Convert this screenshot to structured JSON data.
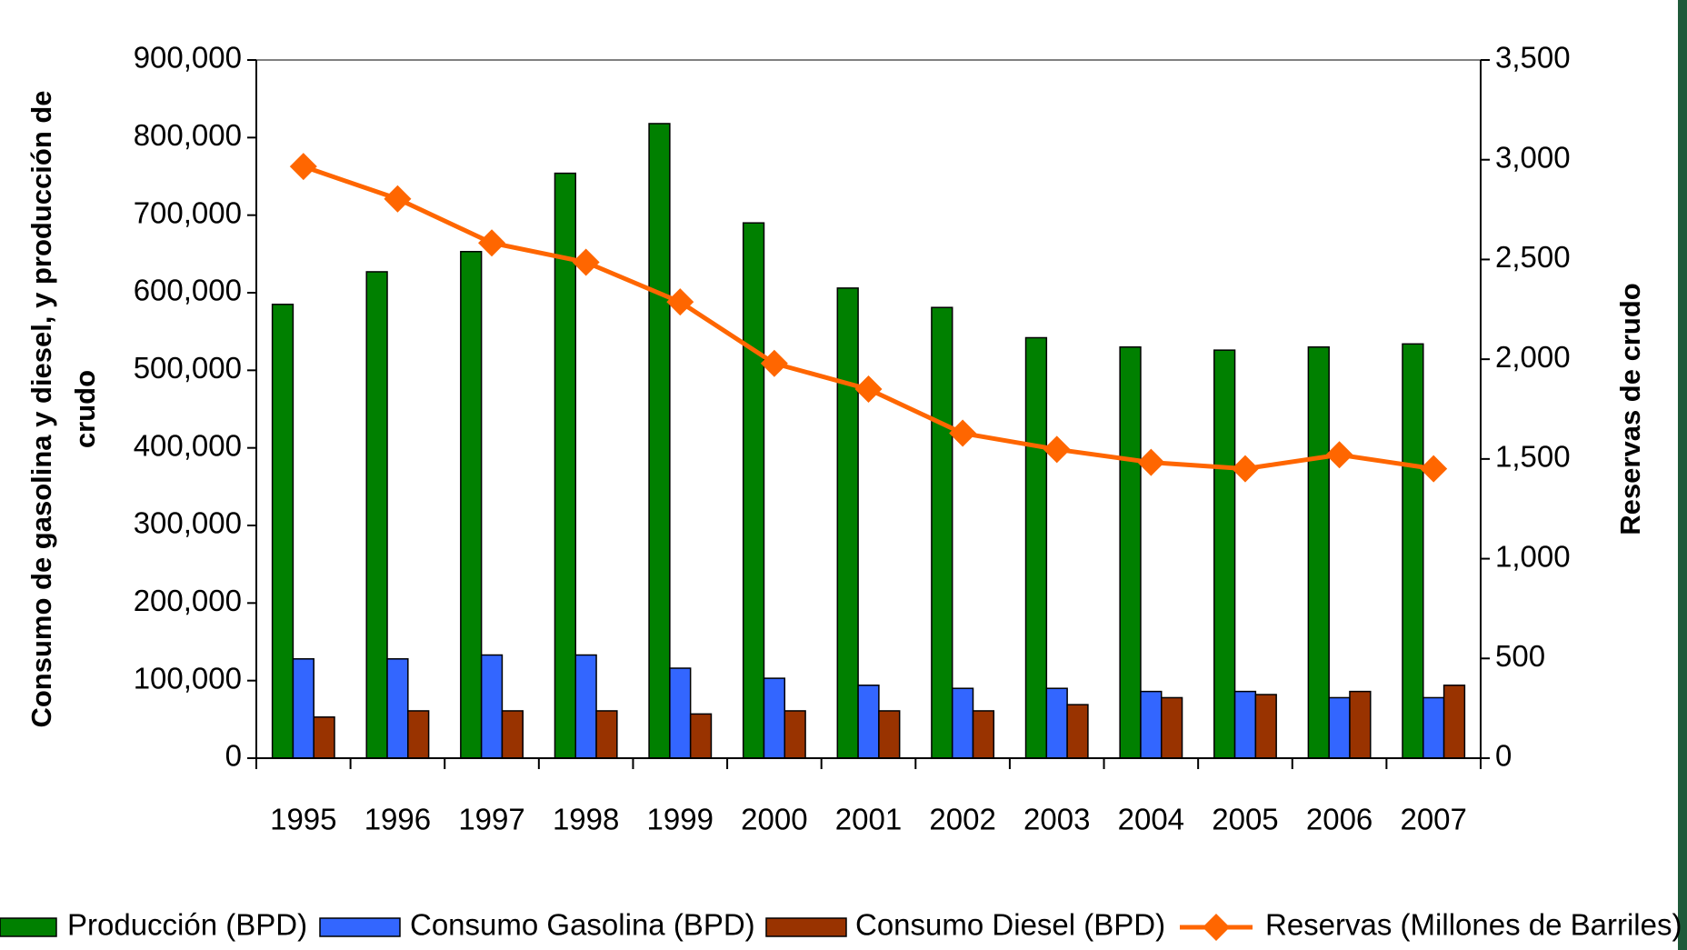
{
  "chart_data": {
    "type": "bar",
    "y_label": [
      "Consumo de gasolina y diesel, y producción de",
      "crudo"
    ],
    "y2_label": "Reservas de crudo",
    "categories": [
      "1995",
      "1996",
      "1997",
      "1998",
      "1999",
      "2000",
      "2001",
      "2002",
      "2003",
      "2004",
      "2005",
      "2006",
      "2007"
    ],
    "series": [
      {
        "name": "Producción (BPD)",
        "color": "#008000",
        "values": [
          585000,
          627000,
          653000,
          754000,
          818000,
          690000,
          606000,
          581000,
          542000,
          530000,
          526000,
          530000,
          534000
        ]
      },
      {
        "name": "Consumo Gasolina (BPD)",
        "color": "#3366ff",
        "values": [
          128000,
          128000,
          133000,
          133000,
          116000,
          103000,
          94000,
          90000,
          90000,
          86000,
          86000,
          78000,
          78000
        ]
      },
      {
        "name": "Consumo Diesel (BPD)",
        "color": "#993300",
        "values": [
          53000,
          61000,
          61000,
          61000,
          57000,
          61000,
          61000,
          61000,
          69000,
          78000,
          82000,
          86000,
          94000
        ]
      },
      {
        "name": "Reservas (Millones de Barriles)",
        "color": "#ff6600",
        "type": "line",
        "axis": "y2",
        "values": [
          2966,
          2804,
          2583,
          2486,
          2287,
          1979,
          1850,
          1629,
          1548,
          1483,
          1451,
          1521,
          1451
        ]
      }
    ],
    "ylim": [
      0,
      900000
    ],
    "yticks": [
      0,
      {
        "value": 100000,
        "label": "100,000"
      },
      {
        "value": 200000,
        "label": "200,000"
      },
      {
        "value": 300000,
        "label": "300,000"
      },
      {
        "value": 400000,
        "label": "400,000"
      },
      {
        "value": 500000,
        "label": "500,000"
      },
      {
        "value": 600000,
        "label": "600,000"
      },
      {
        "value": 700000,
        "label": "700,000"
      },
      {
        "value": 800000,
        "label": "800,000"
      },
      {
        "value": 900000,
        "label": "900,000"
      }
    ],
    "y2lim": [
      0,
      3500
    ],
    "y2ticks": [
      0,
      500,
      {
        "value": 1000,
        "label": "1,000"
      },
      {
        "value": 1500,
        "label": "1,500"
      },
      {
        "value": 2000,
        "label": "2,000"
      },
      {
        "value": 2500,
        "label": "2,500"
      },
      {
        "value": 3000,
        "label": "3,000"
      },
      {
        "value": 3500,
        "label": "3,500"
      }
    ],
    "legend": "bottom"
  }
}
